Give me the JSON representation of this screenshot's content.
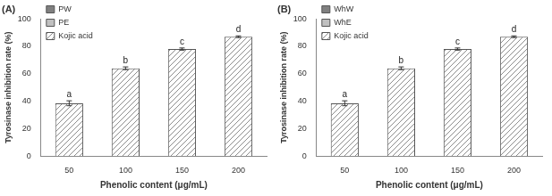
{
  "chart_data": [
    {
      "type": "bar",
      "title": "(A)",
      "x_label": "Phenolic content (μg/mL)",
      "y_label": "Tyrosinase inhibition rate (%)",
      "categories": [
        "50",
        "100",
        "150",
        "200"
      ],
      "series": [
        {
          "name": "PW",
          "color": "#808080",
          "values": [
            null,
            null,
            null,
            null
          ]
        },
        {
          "name": "PE",
          "color": "#c0c0c0",
          "values": [
            null,
            null,
            null,
            null
          ]
        },
        {
          "name": "Kojic acid",
          "color": "#8c8c8c",
          "values": [
            38.5,
            64,
            78,
            87
          ],
          "errors": [
            1.8,
            1.0,
            0.8,
            0.6
          ],
          "annotations": [
            "a",
            "b",
            "c",
            "d"
          ]
        }
      ],
      "ylim": [
        0,
        100
      ],
      "yticks": [
        0,
        20,
        40,
        60,
        80,
        100
      ],
      "grid": false,
      "legend": "top-left"
    },
    {
      "type": "bar",
      "title": "(B)",
      "x_label": "Phenolic content (μg/mL)",
      "y_label": "Tyrosinase inhibition rate (%)",
      "categories": [
        "50",
        "100",
        "150",
        "200"
      ],
      "series": [
        {
          "name": "WhW",
          "color": "#808080",
          "values": [
            null,
            null,
            null,
            null
          ]
        },
        {
          "name": "WhE",
          "color": "#c0c0c0",
          "values": [
            null,
            null,
            null,
            null
          ]
        },
        {
          "name": "Kojic acid",
          "color": "#8c8c8c",
          "values": [
            38.5,
            64,
            78,
            87
          ],
          "errors": [
            1.8,
            1.0,
            0.8,
            0.6
          ],
          "annotations": [
            "a",
            "b",
            "c",
            "d"
          ]
        }
      ],
      "ylim": [
        0,
        100
      ],
      "yticks": [
        0,
        20,
        40,
        60,
        80,
        100
      ],
      "grid": false,
      "legend": "top-left"
    }
  ]
}
